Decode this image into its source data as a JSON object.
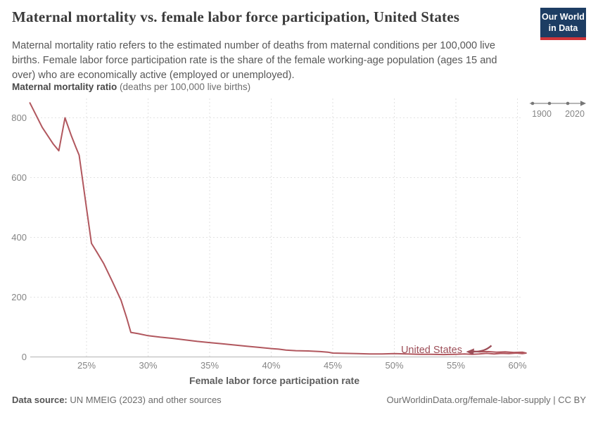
{
  "header": {
    "title": "Maternal mortality vs. female labor force participation, United States",
    "subtitle": "Maternal mortality ratio refers to the estimated number of deaths from maternal conditions per 100,000 live births. Female labor force participation rate is the share of the female working-age population (ages 15 and over) who are economically active (employed or unemployed).",
    "logo": {
      "line1": "Our World",
      "line2": "in Data",
      "bg": "#1d3d63",
      "accent": "#cf3539"
    }
  },
  "timeline": {
    "start": "1900",
    "end": "2020"
  },
  "axis_title": {
    "bold": "Maternal mortality ratio",
    "normal": " (deaths per 100,000 live births)"
  },
  "chart_data": {
    "type": "line",
    "title": "Maternal mortality vs. female labor force participation, United States",
    "xlabel": "Female labor force participation rate",
    "ylabel": "Maternal mortality ratio (deaths per 100,000 live births)",
    "xlim": [
      20,
      61
    ],
    "ylim": [
      0,
      860
    ],
    "grid": true,
    "x_ticks": [
      {
        "v": 25,
        "label": "25%"
      },
      {
        "v": 30,
        "label": "30%"
      },
      {
        "v": 35,
        "label": "35%"
      },
      {
        "v": 40,
        "label": "40%"
      },
      {
        "v": 45,
        "label": "45%"
      },
      {
        "v": 50,
        "label": "50%"
      },
      {
        "v": 55,
        "label": "55%"
      },
      {
        "v": 60,
        "label": "60%"
      }
    ],
    "y_ticks": [
      {
        "v": 0,
        "label": "0"
      },
      {
        "v": 200,
        "label": "200"
      },
      {
        "v": 400,
        "label": "400"
      },
      {
        "v": 600,
        "label": "600"
      },
      {
        "v": 800,
        "label": "800"
      }
    ],
    "series": [
      {
        "name": "United States",
        "color": "#b1575e",
        "points": [
          [
            20.4,
            850
          ],
          [
            21.4,
            768
          ],
          [
            22.3,
            712
          ],
          [
            22.75,
            690
          ],
          [
            23.25,
            800
          ],
          [
            23.75,
            742
          ],
          [
            24.15,
            700
          ],
          [
            24.4,
            675
          ],
          [
            25.0,
            497
          ],
          [
            25.4,
            380
          ],
          [
            25.85,
            350
          ],
          [
            26.4,
            312
          ],
          [
            27.1,
            252
          ],
          [
            27.8,
            190
          ],
          [
            28.25,
            132
          ],
          [
            28.6,
            82
          ],
          [
            29.2,
            78
          ],
          [
            30.0,
            71
          ],
          [
            31.0,
            66
          ],
          [
            32.0,
            62
          ],
          [
            33.0,
            57
          ],
          [
            34.0,
            52
          ],
          [
            35.0,
            48
          ],
          [
            36.0,
            44
          ],
          [
            37.0,
            40
          ],
          [
            38.0,
            36
          ],
          [
            39.0,
            32
          ],
          [
            40.0,
            28
          ],
          [
            40.6,
            26
          ],
          [
            41.2,
            23
          ],
          [
            42.0,
            21
          ],
          [
            43.0,
            20
          ],
          [
            44.0,
            18
          ],
          [
            44.6,
            16
          ],
          [
            45.0,
            13
          ],
          [
            46.0,
            12
          ],
          [
            47.0,
            11
          ],
          [
            48.0,
            10
          ],
          [
            49.0,
            10
          ],
          [
            50.0,
            11
          ],
          [
            51.0,
            10
          ],
          [
            52.0,
            9
          ],
          [
            53.0,
            9
          ],
          [
            54.0,
            8
          ],
          [
            55.0,
            9
          ],
          [
            55.7,
            10
          ],
          [
            56.3,
            9
          ],
          [
            56.9,
            10
          ],
          [
            57.5,
            12
          ],
          [
            58.1,
            10
          ],
          [
            58.7,
            12
          ],
          [
            59.3,
            11
          ],
          [
            59.9,
            13
          ],
          [
            60.4,
            11
          ],
          [
            60.7,
            13
          ],
          [
            60.4,
            16
          ],
          [
            59.7,
            15
          ],
          [
            59.0,
            17
          ],
          [
            58.3,
            16
          ],
          [
            57.6,
            18
          ],
          [
            56.9,
            17
          ],
          [
            56.4,
            19
          ],
          [
            56.0,
            18
          ]
        ]
      }
    ],
    "annotation": {
      "label": "United States",
      "arrow_points_to": [
        56.0,
        18
      ]
    }
  },
  "footer": {
    "source_bold": "Data source:",
    "source_rest": " UN MMEIG (2023) and other sources",
    "right": "OurWorldinData.org/female-labor-supply | CC BY"
  },
  "colors": {
    "line": "#b1575e",
    "entity_label": "#9d4e58",
    "grid": "#e2e2e2",
    "axis": "#b3b3b3",
    "tick_text": "#858585",
    "x_axis_title": "#5c5c5c",
    "timeline": "#8a8a8a"
  }
}
